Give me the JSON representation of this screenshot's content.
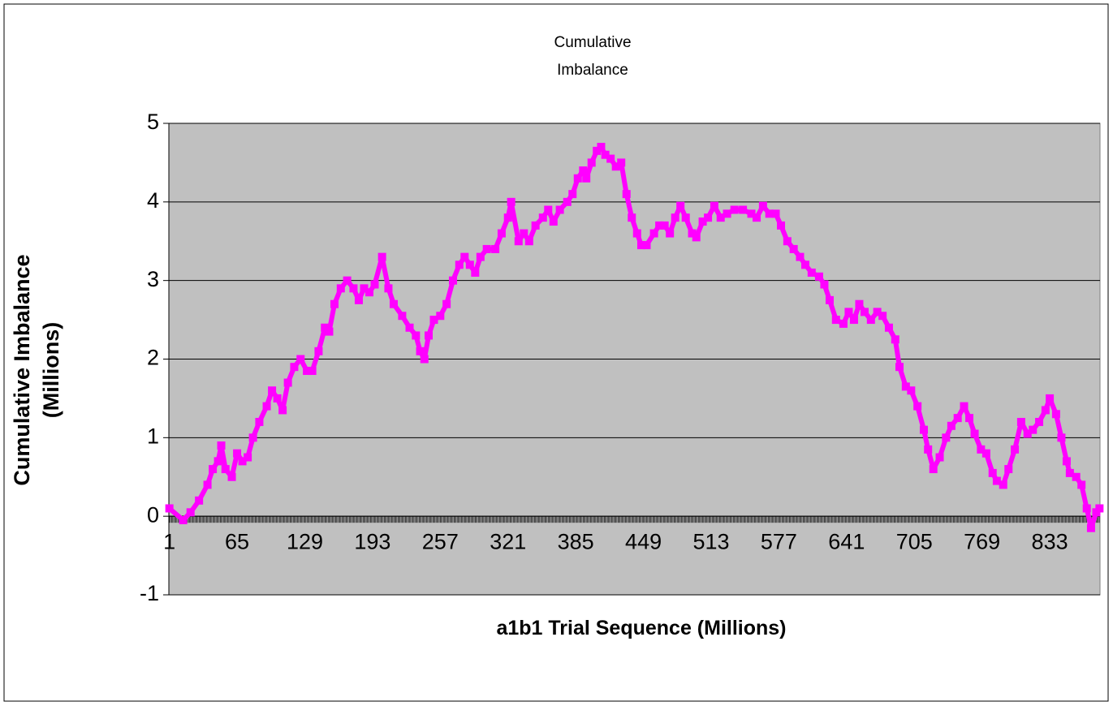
{
  "chart_data": {
    "type": "line",
    "title": "Cumulative Imbalance",
    "x_label": "a1b1 Trial Sequence (Millions)",
    "y_label": "Cumulative Imbalance (Millions)",
    "x": [
      1,
      14,
      21,
      29,
      37,
      42,
      47,
      50,
      54,
      60,
      65,
      70,
      75,
      80,
      86,
      93,
      98,
      103,
      108,
      113,
      119,
      125,
      131,
      136,
      142,
      148,
      152,
      157,
      163,
      169,
      175,
      180,
      185,
      190,
      195,
      202,
      208,
      213,
      221,
      228,
      234,
      238,
      242,
      246,
      251,
      257,
      263,
      269,
      275,
      280,
      285,
      290,
      295,
      301,
      309,
      315,
      321,
      324,
      331,
      336,
      341,
      347,
      354,
      359,
      364,
      370,
      377,
      382,
      387,
      392,
      395,
      400,
      405,
      409,
      413,
      418,
      423,
      428,
      433,
      438,
      443,
      447,
      452,
      459,
      464,
      469,
      474,
      479,
      484,
      489,
      495,
      499,
      505,
      510,
      516,
      522,
      528,
      535,
      543,
      551,
      556,
      562,
      568,
      574,
      579,
      585,
      591,
      597,
      602,
      608,
      615,
      620,
      625,
      631,
      638,
      643,
      648,
      653,
      658,
      664,
      670,
      675,
      681,
      687,
      691,
      697,
      702,
      708,
      714,
      718,
      723,
      729,
      735,
      740,
      746,
      752,
      757,
      762,
      768,
      773,
      779,
      783,
      789,
      794,
      800,
      806,
      812,
      817,
      823,
      829,
      833,
      839,
      844,
      849,
      852,
      858,
      863,
      868,
      872,
      877,
      880
    ],
    "series": [
      {
        "name": "Cumulative Imbalance",
        "color": "#ff00ff",
        "values": [
          0.1,
          -0.05,
          0.05,
          0.2,
          0.4,
          0.6,
          0.7,
          0.9,
          0.6,
          0.5,
          0.8,
          0.7,
          0.75,
          1.0,
          1.2,
          1.4,
          1.6,
          1.5,
          1.35,
          1.7,
          1.9,
          2.0,
          1.85,
          1.85,
          2.1,
          2.4,
          2.35,
          2.7,
          2.9,
          3.0,
          2.9,
          2.75,
          2.9,
          2.85,
          2.95,
          3.3,
          2.9,
          2.7,
          2.55,
          2.4,
          2.3,
          2.1,
          2.0,
          2.3,
          2.5,
          2.55,
          2.7,
          3.0,
          3.2,
          3.3,
          3.2,
          3.1,
          3.3,
          3.4,
          3.4,
          3.6,
          3.8,
          4.0,
          3.5,
          3.6,
          3.5,
          3.7,
          3.8,
          3.9,
          3.75,
          3.9,
          4.0,
          4.1,
          4.3,
          4.4,
          4.3,
          4.5,
          4.65,
          4.7,
          4.6,
          4.55,
          4.45,
          4.5,
          4.1,
          3.8,
          3.6,
          3.45,
          3.45,
          3.6,
          3.7,
          3.7,
          3.6,
          3.8,
          3.95,
          3.8,
          3.6,
          3.55,
          3.75,
          3.8,
          3.95,
          3.8,
          3.85,
          3.9,
          3.9,
          3.85,
          3.8,
          3.95,
          3.85,
          3.85,
          3.7,
          3.5,
          3.4,
          3.3,
          3.2,
          3.1,
          3.05,
          2.95,
          2.75,
          2.5,
          2.45,
          2.6,
          2.5,
          2.7,
          2.6,
          2.5,
          2.6,
          2.55,
          2.4,
          2.25,
          1.9,
          1.65,
          1.6,
          1.4,
          1.1,
          0.85,
          0.6,
          0.75,
          1.0,
          1.15,
          1.25,
          1.4,
          1.25,
          1.05,
          0.85,
          0.8,
          0.55,
          0.45,
          0.4,
          0.6,
          0.85,
          1.2,
          1.05,
          1.1,
          1.2,
          1.35,
          1.5,
          1.3,
          1.0,
          0.7,
          0.55,
          0.5,
          0.4,
          0.1,
          -0.15,
          0.05,
          0.1
        ]
      }
    ],
    "xlim": [
      0.5,
      880.5
    ],
    "xticks": [
      1,
      65,
      129,
      193,
      257,
      321,
      385,
      449,
      513,
      577,
      641,
      705,
      769,
      833
    ],
    "ylim": [
      -1,
      5
    ],
    "yticks": [
      -1,
      0,
      1,
      2,
      3,
      4,
      5
    ],
    "grid": true,
    "plot_background": "#c0c0c0",
    "legend": false
  }
}
